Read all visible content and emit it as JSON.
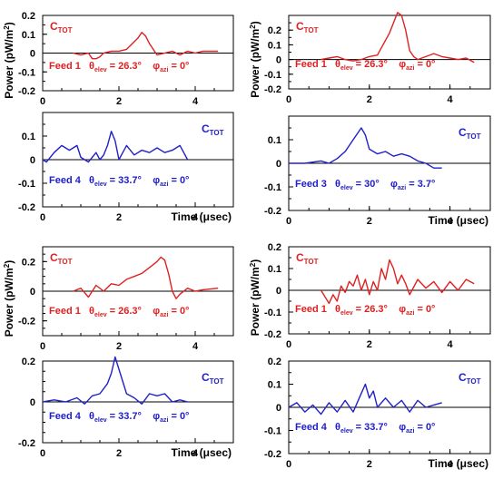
{
  "ylabel_text": "Power (pW/m",
  "ylabel_sup": "2",
  "ylabel_close": ")",
  "time_label": "Time (μsec)",
  "colors": {
    "red": "#e02020",
    "blue": "#2020c8",
    "axis": "#000000"
  },
  "chart_data": [
    {
      "type": "line",
      "ylim": [
        -0.2,
        0.2
      ],
      "yticks": [
        -0.2,
        -0.1,
        0,
        0.1,
        0.2
      ],
      "xticks": [
        0,
        2,
        4
      ],
      "xlim": [
        0,
        5
      ],
      "color": "red",
      "ctot": "C",
      "ctot_sub": "TOT",
      "feed": "Feed 1",
      "theta": "26.3°",
      "phi": "0°",
      "x": [
        0.8,
        1.0,
        1.2,
        1.3,
        1.4,
        1.5,
        1.6,
        1.8,
        2.0,
        2.2,
        2.3,
        2.5,
        2.6,
        2.7,
        2.8,
        2.9,
        3.0,
        3.2,
        3.4,
        3.6,
        3.8,
        4.0,
        4.2,
        4.4,
        4.6
      ],
      "y": [
        0.0,
        -0.01,
        0.0,
        -0.03,
        -0.03,
        -0.02,
        0.0,
        0.01,
        0.01,
        0.02,
        0.04,
        0.08,
        0.11,
        0.09,
        0.05,
        0.02,
        -0.01,
        0.0,
        0.01,
        -0.01,
        0.01,
        0.0,
        0.01,
        0.01,
        0.01
      ],
      "show_time": false
    },
    {
      "type": "line",
      "ylim": [
        -0.2,
        0.3
      ],
      "yticks": [
        -0.2,
        -0.1,
        0,
        0.1,
        0.2
      ],
      "xticks": [
        0,
        2,
        4
      ],
      "xlim": [
        0,
        5
      ],
      "color": "red",
      "ctot": "C",
      "ctot_sub": "TOT",
      "feed": "Feed 1",
      "theta": "26.3°",
      "phi": "0°",
      "x": [
        0.8,
        1.0,
        1.2,
        1.4,
        1.6,
        1.8,
        2.0,
        2.2,
        2.3,
        2.5,
        2.7,
        2.8,
        2.9,
        3.0,
        3.1,
        3.2,
        3.4,
        3.6,
        3.8,
        4.0,
        4.2,
        4.4,
        4.6
      ],
      "y": [
        0.0,
        0.01,
        0.02,
        0.0,
        -0.01,
        0.0,
        0.02,
        0.03,
        0.08,
        0.18,
        0.32,
        0.3,
        0.2,
        0.06,
        0.02,
        0.0,
        0.02,
        0.04,
        0.02,
        0.01,
        0.0,
        0.01,
        -0.02
      ],
      "show_time": false
    },
    {
      "type": "line",
      "ylim": [
        -0.2,
        0.2
      ],
      "yticks": [
        -0.2,
        -0.1,
        0,
        0.1
      ],
      "xticks": [
        0,
        2,
        4
      ],
      "xlim": [
        0,
        5
      ],
      "color": "blue",
      "ctot": "C",
      "ctot_sub": "TOT",
      "feed": "Feed 4",
      "theta": "33.7°",
      "phi": "0°",
      "x": [
        0.0,
        0.1,
        0.3,
        0.5,
        0.7,
        0.9,
        1.0,
        1.2,
        1.4,
        1.5,
        1.6,
        1.7,
        1.8,
        1.9,
        2.0,
        2.1,
        2.2,
        2.4,
        2.6,
        2.8,
        3.0,
        3.2,
        3.4,
        3.6,
        3.8
      ],
      "y": [
        0.0,
        -0.01,
        0.03,
        0.06,
        0.04,
        0.06,
        0.01,
        -0.01,
        0.03,
        0.0,
        0.02,
        0.06,
        0.12,
        0.08,
        0.0,
        0.03,
        0.06,
        0.02,
        0.04,
        0.03,
        0.05,
        0.03,
        0.04,
        0.06,
        0.0
      ],
      "show_time": true
    },
    {
      "type": "line",
      "ylim": [
        -0.2,
        0.2
      ],
      "yticks": [
        -0.2,
        -0.1,
        0,
        0.1
      ],
      "xticks": [
        0,
        2,
        4
      ],
      "xlim": [
        0,
        5
      ],
      "color": "blue",
      "ctot": "C",
      "ctot_sub": "TOT",
      "feed": "Feed 3",
      "theta": "30°",
      "phi": "3.7°",
      "x": [
        0.0,
        0.4,
        0.8,
        1.0,
        1.2,
        1.4,
        1.6,
        1.8,
        1.9,
        2.0,
        2.2,
        2.4,
        2.6,
        2.8,
        3.0,
        3.2,
        3.4,
        3.6,
        3.8
      ],
      "y": [
        0.0,
        0.0,
        0.01,
        0.0,
        0.02,
        0.05,
        0.1,
        0.15,
        0.12,
        0.06,
        0.04,
        0.05,
        0.03,
        0.04,
        0.03,
        0.01,
        0.0,
        -0.02,
        -0.02
      ],
      "show_time": true
    },
    {
      "type": "line",
      "ylim": [
        -0.3,
        0.3
      ],
      "yticks": [
        -0.2,
        0,
        0.2
      ],
      "xticks": [
        0,
        2,
        4
      ],
      "xlim": [
        0,
        5
      ],
      "color": "red",
      "ctot": "C",
      "ctot_sub": "TOT",
      "feed": "Feed 1",
      "theta": "26.3°",
      "phi": "0°",
      "x": [
        0.8,
        1.0,
        1.2,
        1.4,
        1.6,
        1.8,
        2.0,
        2.2,
        2.4,
        2.6,
        2.8,
        3.0,
        3.1,
        3.2,
        3.3,
        3.4,
        3.5,
        3.6,
        3.8,
        4.0,
        4.2,
        4.6
      ],
      "y": [
        0.0,
        0.02,
        -0.04,
        0.04,
        0.0,
        0.05,
        0.04,
        0.08,
        0.1,
        0.12,
        0.16,
        0.2,
        0.23,
        0.21,
        0.12,
        0.0,
        -0.05,
        -0.02,
        0.02,
        0.0,
        0.01,
        0.02
      ],
      "show_time": false
    },
    {
      "type": "line",
      "ylim": [
        -0.2,
        0.2
      ],
      "yticks": [
        -0.2,
        -0.1,
        0,
        0.1,
        0.2
      ],
      "xticks": [
        0,
        2,
        4
      ],
      "xlim": [
        0,
        5
      ],
      "color": "red",
      "ctot": "C",
      "ctot_sub": "TOT",
      "feed": "Feed 1",
      "theta": "26.3°",
      "phi": "0°",
      "x": [
        0.8,
        0.9,
        1.0,
        1.1,
        1.2,
        1.3,
        1.4,
        1.5,
        1.6,
        1.7,
        1.8,
        1.9,
        2.0,
        2.1,
        2.2,
        2.3,
        2.4,
        2.5,
        2.6,
        2.7,
        2.8,
        2.9,
        3.0,
        3.2,
        3.4,
        3.6,
        3.8,
        4.0,
        4.2,
        4.4,
        4.6
      ],
      "y": [
        0.0,
        -0.03,
        -0.06,
        -0.02,
        -0.05,
        0.02,
        -0.01,
        0.04,
        0.02,
        0.07,
        0.0,
        0.05,
        -0.02,
        0.04,
        0.0,
        0.1,
        0.05,
        0.14,
        0.1,
        0.03,
        0.07,
        0.03,
        -0.02,
        0.05,
        0.01,
        0.04,
        -0.01,
        0.04,
        0.0,
        0.05,
        0.03
      ],
      "show_time": false
    },
    {
      "type": "line",
      "ylim": [
        -0.2,
        0.2
      ],
      "yticks": [
        -0.2,
        0,
        0.2
      ],
      "xticks": [
        0,
        2,
        4
      ],
      "xlim": [
        0,
        5
      ],
      "color": "blue",
      "ctot": "C",
      "ctot_sub": "TOT",
      "feed": "Feed 4",
      "theta": "33.7°",
      "phi": "0°",
      "x": [
        0.0,
        0.3,
        0.6,
        0.9,
        1.1,
        1.3,
        1.5,
        1.7,
        1.8,
        1.9,
        2.0,
        2.1,
        2.2,
        2.4,
        2.6,
        2.8,
        3.0,
        3.2,
        3.4,
        3.6,
        3.8
      ],
      "y": [
        0.0,
        0.01,
        0.0,
        0.02,
        -0.01,
        0.03,
        0.04,
        0.09,
        0.14,
        0.22,
        0.16,
        0.1,
        0.04,
        0.02,
        -0.01,
        0.04,
        0.03,
        0.04,
        0.0,
        0.01,
        0.0
      ],
      "show_time": true
    },
    {
      "type": "line",
      "ylim": [
        -0.2,
        0.2
      ],
      "yticks": [
        -0.2,
        -0.1,
        0,
        0.1,
        0.2
      ],
      "xticks": [
        0,
        2,
        4
      ],
      "xlim": [
        0,
        5
      ],
      "color": "blue",
      "ctot": "C",
      "ctot_sub": "TOT",
      "feed": "Feed 4",
      "theta": "33.7°",
      "phi": "0°",
      "x": [
        0.0,
        0.2,
        0.4,
        0.6,
        0.8,
        1.0,
        1.2,
        1.4,
        1.6,
        1.8,
        1.9,
        2.0,
        2.1,
        2.2,
        2.4,
        2.6,
        2.8,
        3.0,
        3.2,
        3.4,
        3.6,
        3.8
      ],
      "y": [
        0.0,
        0.02,
        -0.02,
        0.01,
        -0.03,
        0.02,
        -0.02,
        0.03,
        -0.02,
        0.06,
        0.1,
        0.04,
        0.07,
        0.0,
        0.04,
        0.0,
        0.03,
        -0.02,
        0.03,
        0.0,
        0.01,
        0.02
      ],
      "show_time": true
    }
  ]
}
